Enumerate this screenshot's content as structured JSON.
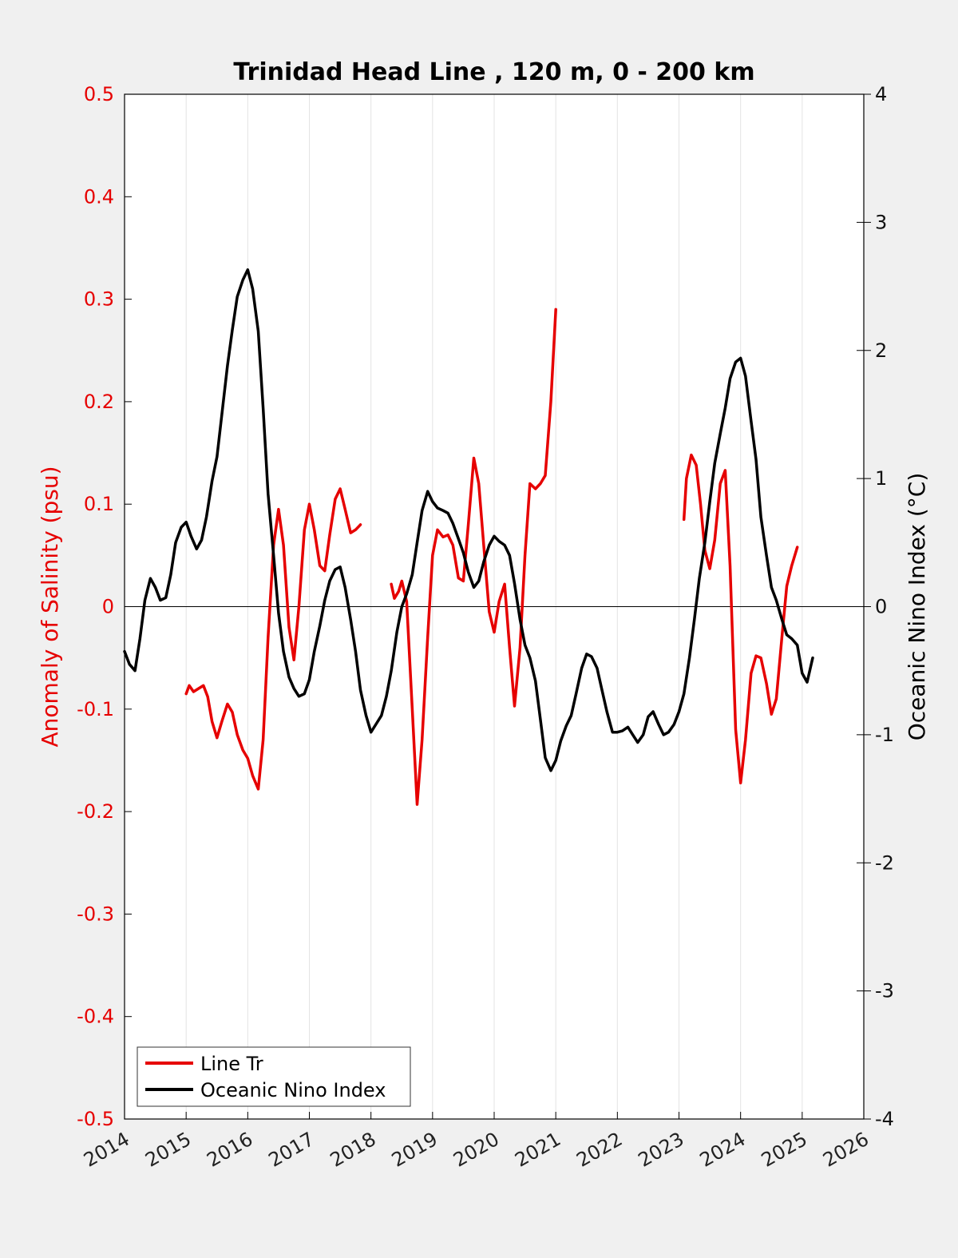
{
  "chart_data": {
    "type": "line",
    "title": "Trinidad Head Line , 120 m, 0 - 200 km",
    "xlabel": "",
    "ylabel_left": "Anomaly of Salinity (psu)",
    "ylabel_right": "Oceanic Nino Index (°C)",
    "xlim": [
      2014,
      2026
    ],
    "ylim_left": [
      -0.5,
      0.5
    ],
    "ylim_right": [
      -4,
      4
    ],
    "x_ticks": [
      "2014",
      "2015",
      "2016",
      "2017",
      "2018",
      "2019",
      "2020",
      "2021",
      "2022",
      "2023",
      "2024",
      "2025",
      "2026"
    ],
    "y_ticks_left": [
      "-0.5",
      "-0.4",
      "-0.3",
      "-0.2",
      "-0.1",
      "0",
      "0.1",
      "0.2",
      "0.3",
      "0.4",
      "0.5"
    ],
    "y_ticks_right": [
      "-4",
      "-3",
      "-2",
      "-1",
      "0",
      "1",
      "2",
      "3",
      "4"
    ],
    "grid": "vertical",
    "legend_position": "bottom-left",
    "series": [
      {
        "name": "Line Tr",
        "color": "#e60000",
        "axis": "left",
        "segments": [
          [
            [
              2015.0,
              -0.085
            ],
            [
              2015.05,
              -0.077
            ],
            [
              2015.12,
              -0.083
            ],
            [
              2015.2,
              -0.08
            ],
            [
              2015.28,
              -0.077
            ],
            [
              2015.35,
              -0.088
            ],
            [
              2015.42,
              -0.112
            ],
            [
              2015.5,
              -0.128
            ],
            [
              2015.58,
              -0.112
            ],
            [
              2015.67,
              -0.095
            ],
            [
              2015.75,
              -0.103
            ],
            [
              2015.83,
              -0.125
            ],
            [
              2015.92,
              -0.14
            ],
            [
              2016.0,
              -0.148
            ],
            [
              2016.08,
              -0.165
            ],
            [
              2016.17,
              -0.178
            ],
            [
              2016.25,
              -0.13
            ],
            [
              2016.33,
              -0.03
            ],
            [
              2016.42,
              0.06
            ],
            [
              2016.5,
              0.095
            ],
            [
              2016.58,
              0.06
            ],
            [
              2016.67,
              -0.02
            ],
            [
              2016.75,
              -0.052
            ],
            [
              2016.83,
              0.0
            ],
            [
              2016.92,
              0.075
            ],
            [
              2017.0,
              0.1
            ],
            [
              2017.08,
              0.075
            ],
            [
              2017.17,
              0.04
            ],
            [
              2017.25,
              0.035
            ],
            [
              2017.33,
              0.07
            ],
            [
              2017.42,
              0.105
            ],
            [
              2017.5,
              0.115
            ],
            [
              2017.58,
              0.095
            ],
            [
              2017.67,
              0.072
            ],
            [
              2017.75,
              0.075
            ],
            [
              2017.83,
              0.08
            ]
          ],
          [
            [
              2018.33,
              0.022
            ],
            [
              2018.38,
              0.008
            ],
            [
              2018.45,
              0.015
            ],
            [
              2018.5,
              0.025
            ],
            [
              2018.58,
              0.005
            ],
            [
              2018.67,
              -0.1
            ],
            [
              2018.75,
              -0.193
            ],
            [
              2018.83,
              -0.13
            ],
            [
              2018.92,
              -0.03
            ],
            [
              2019.0,
              0.05
            ],
            [
              2019.08,
              0.075
            ],
            [
              2019.17,
              0.068
            ],
            [
              2019.25,
              0.07
            ],
            [
              2019.33,
              0.06
            ],
            [
              2019.42,
              0.028
            ],
            [
              2019.5,
              0.025
            ],
            [
              2019.58,
              0.08
            ],
            [
              2019.67,
              0.145
            ],
            [
              2019.75,
              0.12
            ],
            [
              2019.83,
              0.06
            ],
            [
              2019.92,
              -0.005
            ],
            [
              2020.0,
              -0.025
            ],
            [
              2020.08,
              0.005
            ],
            [
              2020.17,
              0.022
            ],
            [
              2020.25,
              -0.04
            ],
            [
              2020.33,
              -0.097
            ],
            [
              2020.42,
              -0.04
            ],
            [
              2020.5,
              0.05
            ],
            [
              2020.58,
              0.12
            ],
            [
              2020.67,
              0.115
            ],
            [
              2020.75,
              0.12
            ],
            [
              2020.83,
              0.128
            ],
            [
              2020.92,
              0.2
            ],
            [
              2021.0,
              0.29
            ]
          ],
          [
            [
              2023.08,
              0.085
            ],
            [
              2023.12,
              0.125
            ],
            [
              2023.2,
              0.148
            ],
            [
              2023.28,
              0.138
            ],
            [
              2023.35,
              0.1
            ],
            [
              2023.42,
              0.055
            ],
            [
              2023.5,
              0.037
            ],
            [
              2023.58,
              0.065
            ],
            [
              2023.67,
              0.12
            ],
            [
              2023.75,
              0.133
            ],
            [
              2023.83,
              0.04
            ],
            [
              2023.92,
              -0.12
            ],
            [
              2024.0,
              -0.172
            ],
            [
              2024.08,
              -0.13
            ],
            [
              2024.17,
              -0.065
            ],
            [
              2024.25,
              -0.048
            ],
            [
              2024.33,
              -0.05
            ],
            [
              2024.42,
              -0.075
            ],
            [
              2024.5,
              -0.105
            ],
            [
              2024.58,
              -0.09
            ],
            [
              2024.67,
              -0.03
            ],
            [
              2024.75,
              0.02
            ],
            [
              2024.83,
              0.04
            ],
            [
              2024.92,
              0.058
            ]
          ]
        ]
      },
      {
        "name": "Oceanic Nino Index",
        "color": "#000000",
        "axis": "right",
        "segments": [
          [
            [
              2014.0,
              -0.35
            ],
            [
              2014.08,
              -0.45
            ],
            [
              2014.17,
              -0.5
            ],
            [
              2014.25,
              -0.25
            ],
            [
              2014.33,
              0.05
            ],
            [
              2014.42,
              0.22
            ],
            [
              2014.5,
              0.15
            ],
            [
              2014.58,
              0.05
            ],
            [
              2014.67,
              0.07
            ],
            [
              2014.75,
              0.25
            ],
            [
              2014.83,
              0.5
            ],
            [
              2014.92,
              0.62
            ],
            [
              2015.0,
              0.66
            ],
            [
              2015.08,
              0.55
            ],
            [
              2015.17,
              0.45
            ],
            [
              2015.25,
              0.52
            ],
            [
              2015.33,
              0.7
            ],
            [
              2015.42,
              0.98
            ],
            [
              2015.5,
              1.17
            ],
            [
              2015.58,
              1.5
            ],
            [
              2015.67,
              1.88
            ],
            [
              2015.75,
              2.16
            ],
            [
              2015.83,
              2.42
            ],
            [
              2015.92,
              2.55
            ],
            [
              2016.0,
              2.63
            ],
            [
              2016.08,
              2.48
            ],
            [
              2016.17,
              2.15
            ],
            [
              2016.25,
              1.55
            ],
            [
              2016.33,
              0.88
            ],
            [
              2016.42,
              0.4
            ],
            [
              2016.5,
              -0.05
            ],
            [
              2016.58,
              -0.35
            ],
            [
              2016.67,
              -0.55
            ],
            [
              2016.75,
              -0.64
            ],
            [
              2016.83,
              -0.7
            ],
            [
              2016.92,
              -0.68
            ],
            [
              2017.0,
              -0.57
            ],
            [
              2017.08,
              -0.35
            ],
            [
              2017.17,
              -0.15
            ],
            [
              2017.25,
              0.05
            ],
            [
              2017.33,
              0.2
            ],
            [
              2017.42,
              0.29
            ],
            [
              2017.5,
              0.31
            ],
            [
              2017.58,
              0.15
            ],
            [
              2017.67,
              -0.1
            ],
            [
              2017.75,
              -0.35
            ],
            [
              2017.83,
              -0.65
            ],
            [
              2017.92,
              -0.85
            ],
            [
              2018.0,
              -0.98
            ],
            [
              2018.08,
              -0.92
            ],
            [
              2018.17,
              -0.85
            ],
            [
              2018.25,
              -0.7
            ],
            [
              2018.33,
              -0.5
            ],
            [
              2018.42,
              -0.2
            ],
            [
              2018.5,
              0.0
            ],
            [
              2018.58,
              0.1
            ],
            [
              2018.67,
              0.25
            ],
            [
              2018.75,
              0.5
            ],
            [
              2018.83,
              0.75
            ],
            [
              2018.92,
              0.9
            ],
            [
              2019.0,
              0.82
            ],
            [
              2019.08,
              0.77
            ],
            [
              2019.17,
              0.75
            ],
            [
              2019.25,
              0.73
            ],
            [
              2019.33,
              0.65
            ],
            [
              2019.42,
              0.53
            ],
            [
              2019.5,
              0.42
            ],
            [
              2019.58,
              0.27
            ],
            [
              2019.67,
              0.15
            ],
            [
              2019.75,
              0.2
            ],
            [
              2019.83,
              0.35
            ],
            [
              2019.92,
              0.48
            ],
            [
              2020.0,
              0.55
            ],
            [
              2020.08,
              0.51
            ],
            [
              2020.17,
              0.48
            ],
            [
              2020.25,
              0.4
            ],
            [
              2020.33,
              0.18
            ],
            [
              2020.42,
              -0.1
            ],
            [
              2020.5,
              -0.3
            ],
            [
              2020.58,
              -0.4
            ],
            [
              2020.67,
              -0.58
            ],
            [
              2020.75,
              -0.88
            ],
            [
              2020.83,
              -1.18
            ],
            [
              2020.92,
              -1.28
            ],
            [
              2021.0,
              -1.2
            ],
            [
              2021.08,
              -1.05
            ],
            [
              2021.17,
              -0.93
            ],
            [
              2021.25,
              -0.85
            ],
            [
              2021.33,
              -0.68
            ],
            [
              2021.42,
              -0.48
            ],
            [
              2021.5,
              -0.37
            ],
            [
              2021.58,
              -0.39
            ],
            [
              2021.67,
              -0.48
            ],
            [
              2021.75,
              -0.65
            ],
            [
              2021.83,
              -0.82
            ],
            [
              2021.92,
              -0.98
            ],
            [
              2022.0,
              -0.98
            ],
            [
              2022.08,
              -0.97
            ],
            [
              2022.17,
              -0.94
            ],
            [
              2022.25,
              -1.0
            ],
            [
              2022.33,
              -1.06
            ],
            [
              2022.42,
              -1.0
            ],
            [
              2022.5,
              -0.86
            ],
            [
              2022.58,
              -0.82
            ],
            [
              2022.67,
              -0.92
            ],
            [
              2022.75,
              -1.0
            ],
            [
              2022.83,
              -0.98
            ],
            [
              2022.92,
              -0.92
            ],
            [
              2023.0,
              -0.82
            ],
            [
              2023.08,
              -0.68
            ],
            [
              2023.17,
              -0.4
            ],
            [
              2023.25,
              -0.1
            ],
            [
              2023.33,
              0.22
            ],
            [
              2023.42,
              0.5
            ],
            [
              2023.5,
              0.82
            ],
            [
              2023.58,
              1.12
            ],
            [
              2023.67,
              1.35
            ],
            [
              2023.75,
              1.55
            ],
            [
              2023.83,
              1.78
            ],
            [
              2023.92,
              1.91
            ],
            [
              2024.0,
              1.94
            ],
            [
              2024.08,
              1.8
            ],
            [
              2024.17,
              1.45
            ],
            [
              2024.25,
              1.15
            ],
            [
              2024.33,
              0.7
            ],
            [
              2024.42,
              0.4
            ],
            [
              2024.5,
              0.15
            ],
            [
              2024.58,
              0.05
            ],
            [
              2024.67,
              -0.1
            ],
            [
              2024.75,
              -0.22
            ],
            [
              2024.83,
              -0.25
            ],
            [
              2024.92,
              -0.3
            ],
            [
              2025.0,
              -0.52
            ],
            [
              2025.08,
              -0.59
            ],
            [
              2025.17,
              -0.4
            ]
          ]
        ]
      }
    ]
  }
}
